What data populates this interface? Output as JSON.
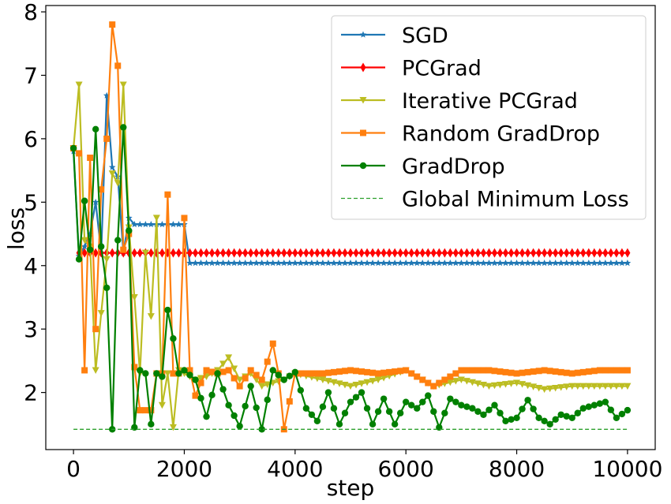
{
  "chart_data": {
    "type": "line",
    "title": "",
    "xlabel": "step",
    "ylabel": "loss",
    "xlim": [
      -500,
      10500
    ],
    "ylim": [
      1.1,
      8.1
    ],
    "xticks": [
      0,
      2000,
      4000,
      6000,
      8000,
      10000
    ],
    "yticks": [
      2,
      3,
      4,
      5,
      6,
      7,
      8
    ],
    "grid": false,
    "legend_position": "top-right",
    "series": [
      {
        "name": "SGD",
        "color": "#1f77b4",
        "marker": "star",
        "linestyle": "solid",
        "x": [
          0,
          100,
          200,
          300,
          400,
          500,
          600,
          700,
          800,
          900,
          1000,
          1100,
          1200,
          1300,
          1400,
          1500,
          1600,
          1700,
          1800,
          1900,
          2000,
          2100,
          10000
        ],
        "y": [
          5.8,
          4.15,
          4.3,
          4.5,
          5.0,
          4.2,
          6.68,
          5.55,
          5.4,
          4.2,
          4.75,
          4.65,
          4.65,
          4.65,
          4.65,
          4.65,
          4.65,
          4.65,
          4.65,
          4.65,
          4.65,
          4.04,
          4.04
        ]
      },
      {
        "name": "PCGrad",
        "color": "#ff0000",
        "marker": "diamond",
        "linestyle": "solid",
        "x": [
          100,
          10000
        ],
        "y": [
          4.2,
          4.2
        ]
      },
      {
        "name": "Iterative PCGrad",
        "color": "#bcbd22",
        "marker": "triangle-down",
        "linestyle": "solid",
        "x": [
          0,
          100,
          200,
          300,
          400,
          500,
          600,
          700,
          800,
          900,
          1000,
          1100,
          1200,
          1300,
          1400,
          1500,
          1600,
          1700,
          1800,
          1900,
          2000,
          2200,
          2400,
          2600,
          2800,
          3000,
          3200,
          3400,
          3600,
          3800,
          4000,
          4500,
          5000,
          5500,
          6000,
          6500,
          7000,
          7500,
          8000,
          8500,
          9000,
          9500,
          10000
        ],
        "y": [
          5.85,
          6.85,
          4.4,
          4.3,
          2.35,
          3.25,
          4.1,
          5.45,
          5.3,
          6.85,
          4.6,
          3.5,
          2.3,
          4.2,
          3.2,
          4.75,
          1.8,
          2.3,
          1.45,
          2.35,
          2.3,
          2.2,
          2.25,
          2.35,
          2.55,
          2.2,
          2.3,
          2.1,
          2.15,
          2.2,
          2.3,
          2.2,
          2.1,
          2.2,
          2.35,
          2.1,
          2.2,
          2.1,
          2.15,
          2.05,
          2.1,
          2.1,
          2.1
        ]
      },
      {
        "name": "Random GradDrop",
        "color": "#ff7f0e",
        "marker": "square",
        "linestyle": "solid",
        "x": [
          0,
          100,
          200,
          300,
          400,
          500,
          600,
          700,
          800,
          900,
          1000,
          1100,
          1200,
          1300,
          1400,
          1500,
          1600,
          1700,
          1800,
          1900,
          2000,
          2100,
          2200,
          2400,
          2600,
          2800,
          3000,
          3200,
          3400,
          3600,
          3700,
          3800,
          4000,
          4500,
          5000,
          5500,
          6000,
          6500,
          7000,
          7500,
          8000,
          8500,
          9000,
          9500,
          10000
        ],
        "y": [
          5.85,
          5.77,
          2.35,
          5.7,
          3.0,
          5.2,
          6.0,
          7.8,
          7.15,
          4.25,
          4.5,
          2.4,
          1.72,
          1.72,
          1.72,
          2.3,
          2.3,
          5.12,
          2.3,
          2.3,
          4.75,
          2.35,
          1.95,
          2.35,
          2.3,
          2.35,
          2.1,
          2.35,
          2.2,
          2.77,
          2.3,
          1.42,
          2.3,
          2.3,
          2.35,
          2.3,
          2.35,
          2.1,
          2.35,
          2.35,
          2.3,
          2.35,
          2.3,
          2.35,
          2.35
        ]
      },
      {
        "name": "GradDrop",
        "color": "#008000",
        "marker": "circle",
        "linestyle": "solid",
        "x": [
          0,
          100,
          200,
          300,
          400,
          500,
          600,
          700,
          800,
          900,
          1000,
          1100,
          1200,
          1300,
          1400,
          1500,
          1600,
          1700,
          1800,
          1900,
          2000,
          2200,
          2400,
          2600,
          2800,
          3000,
          3200,
          3400,
          3600,
          3800,
          4000,
          4200,
          4400,
          4600,
          4800,
          5000,
          5200,
          5400,
          5600,
          5800,
          6000,
          6200,
          6400,
          6600,
          6800,
          7000,
          7200,
          7400,
          7600,
          7800,
          8000,
          8200,
          8400,
          8600,
          8800,
          9000,
          9200,
          9400,
          9600,
          9800,
          10000
        ],
        "y": [
          5.85,
          4.1,
          5.02,
          4.25,
          6.15,
          4.3,
          3.65,
          1.42,
          4.4,
          6.18,
          4.55,
          1.45,
          2.35,
          2.3,
          1.5,
          2.3,
          2.25,
          3.3,
          2.85,
          2.3,
          2.35,
          2.2,
          1.62,
          2.3,
          1.8,
          1.47,
          2.1,
          1.42,
          2.35,
          2.2,
          2.32,
          1.75,
          1.55,
          2.0,
          1.5,
          1.85,
          2.0,
          1.5,
          1.9,
          1.5,
          1.85,
          1.75,
          1.95,
          1.45,
          1.9,
          1.8,
          1.75,
          1.65,
          1.8,
          1.55,
          1.6,
          1.88,
          1.6,
          1.5,
          1.65,
          1.6,
          1.75,
          1.8,
          1.85,
          1.6,
          1.72
        ]
      },
      {
        "name": "Global Minimum Loss",
        "color": "#2ca02c",
        "marker": "none",
        "linestyle": "dashed",
        "x": [
          0,
          10000
        ],
        "y": [
          1.42,
          1.42
        ]
      }
    ]
  }
}
